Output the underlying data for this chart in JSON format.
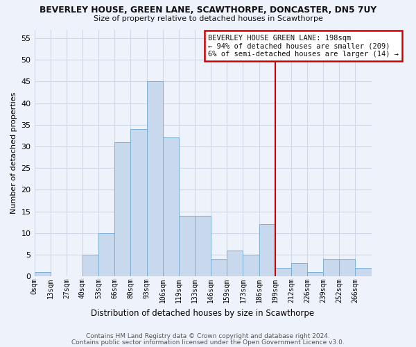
{
  "title_line1": "BEVERLEY HOUSE, GREEN LANE, SCAWTHORPE, DONCASTER, DN5 7UY",
  "title_line2": "Size of property relative to detached houses in Scawthorpe",
  "xlabel": "Distribution of detached houses by size in Scawthorpe",
  "ylabel": "Number of detached properties",
  "bin_labels": [
    "0sqm",
    "13sqm",
    "27sqm",
    "40sqm",
    "53sqm",
    "66sqm",
    "80sqm",
    "93sqm",
    "106sqm",
    "119sqm",
    "133sqm",
    "146sqm",
    "159sqm",
    "173sqm",
    "186sqm",
    "199sqm",
    "212sqm",
    "226sqm",
    "239sqm",
    "252sqm",
    "266sqm"
  ],
  "bar_heights": [
    1,
    0,
    0,
    5,
    10,
    31,
    34,
    45,
    32,
    14,
    14,
    4,
    6,
    5,
    12,
    2,
    3,
    1,
    4,
    4,
    2
  ],
  "bar_color": "#c8d9ee",
  "bar_edge_color": "#7aafd4",
  "vline_x_index": 15,
  "vline_color": "#cc0000",
  "annotation_line1": "BEVERLEY HOUSE GREEN LANE: 198sqm",
  "annotation_line2": "← 94% of detached houses are smaller (209)",
  "annotation_line3": "6% of semi-detached houses are larger (14) →",
  "grid_color": "#d0d8e8",
  "ylim": [
    0,
    57
  ],
  "yticks": [
    0,
    5,
    10,
    15,
    20,
    25,
    30,
    35,
    40,
    45,
    50,
    55
  ],
  "footer_line1": "Contains HM Land Registry data © Crown copyright and database right 2024.",
  "footer_line2": "Contains public sector information licensed under the Open Government Licence v3.0.",
  "background_color": "#eef2fa",
  "plot_bg_color": "#eef2fa"
}
